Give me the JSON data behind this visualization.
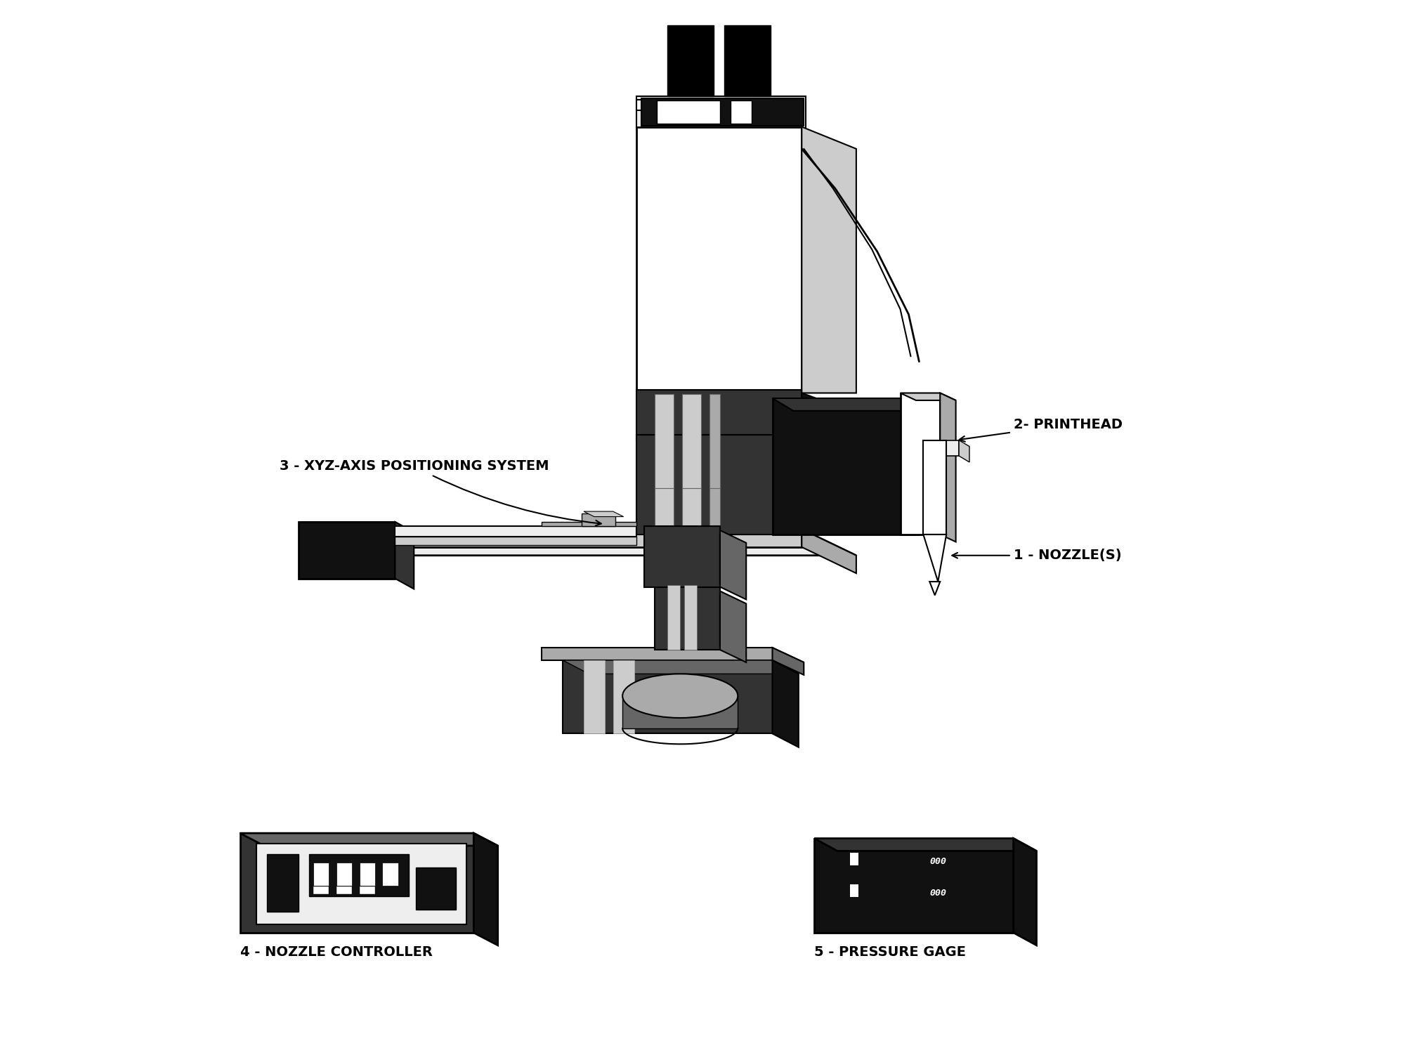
{
  "bg_color": "#ffffff",
  "fig_width": 20.2,
  "fig_height": 14.92,
  "labels": {
    "label1": "1 - NOZZLE(S)",
    "label2": "2- PRINTHEAD",
    "label3": "3 - XYZ-AXIS POSITIONING SYSTEM",
    "label4": "4 - NOZZLE CONTROLLER",
    "label5": "5 - PRESSURE GAGE"
  },
  "dark": "#111111",
  "black": "#000000",
  "dgray": "#333333",
  "mgray": "#666666",
  "lgray": "#aaaaaa",
  "xlgray": "#cccccc",
  "white": "#ffffff",
  "near_white": "#eeeeee"
}
